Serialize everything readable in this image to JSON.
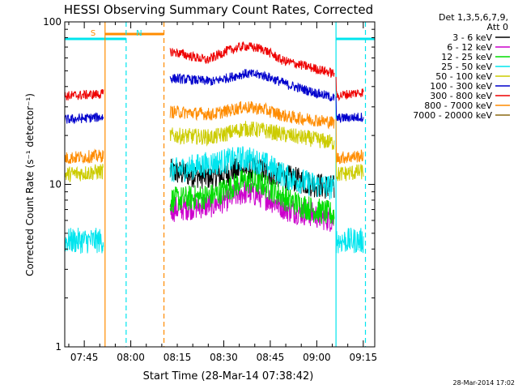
{
  "chart_data": {
    "type": "line",
    "title": "HESSI Observing Summary Count Rates, Corrected",
    "ylabel": "Corrected Count Rate (s⁻¹ detector⁻¹)",
    "xlabel": "Start Time (28-Mar-14 07:38:42)",
    "timestamp": "28-Mar-2014 17:02",
    "y_scale": "log",
    "ylim": [
      1,
      100
    ],
    "xlim_minutes": [
      0,
      100
    ],
    "x_ticks": [
      {
        "m": 6.3,
        "label": "07:45"
      },
      {
        "m": 21.3,
        "label": "08:00"
      },
      {
        "m": 36.3,
        "label": "08:15"
      },
      {
        "m": 51.3,
        "label": "08:30"
      },
      {
        "m": 66.3,
        "label": "08:45"
      },
      {
        "m": 81.3,
        "label": "09:00"
      },
      {
        "m": 96.3,
        "label": "09:15"
      }
    ],
    "y_ticks": [
      {
        "v": 1,
        "label": "1"
      },
      {
        "v": 10,
        "label": "10"
      },
      {
        "v": 100,
        "label": "100"
      }
    ],
    "legend_header": [
      "Det 1,3,5,6,7,9,",
      "Att 0"
    ],
    "legend_position": "right",
    "annotations": [
      {
        "label": "S",
        "m": 12.5
      },
      {
        "label": "N",
        "m": 23.0
      }
    ],
    "saa_bar": {
      "start": 13.0,
      "end": 32.0
    },
    "night_bars": [
      [
        0,
        19.8
      ],
      [
        87.5,
        100
      ]
    ],
    "vlines": [
      {
        "m": 13.0,
        "color": "#ff8c00",
        "style": "solid"
      },
      {
        "m": 19.8,
        "color": "#00e5ee",
        "style": "dashed"
      },
      {
        "m": 32.0,
        "color": "#ff8c00",
        "style": "dashed"
      },
      {
        "m": 87.5,
        "color": "#00e5ee",
        "style": "solid"
      },
      {
        "m": 97.0,
        "color": "#00e5ee",
        "style": "dashed"
      }
    ],
    "segments": [
      [
        0,
        12.5
      ],
      [
        34.0,
        87.0
      ],
      [
        87.5,
        96.5
      ]
    ],
    "series": [
      {
        "name": "3 - 6 keV",
        "color": "#000000",
        "key": [
          [
            34,
            12.0
          ],
          [
            48,
            11.0
          ],
          [
            58,
            12.5
          ],
          [
            64,
            12.0
          ],
          [
            72,
            11.0
          ],
          [
            80,
            10.0
          ],
          [
            87,
            9.5
          ]
        ],
        "noise": 0.08
      },
      {
        "name": "6 - 12 keV",
        "color": "#cc00cc",
        "key": [
          [
            34,
            7.0
          ],
          [
            48,
            7.5
          ],
          [
            58,
            9.0
          ],
          [
            64,
            8.5
          ],
          [
            72,
            7.0
          ],
          [
            80,
            6.5
          ],
          [
            87,
            6.0
          ]
        ],
        "noise": 0.08
      },
      {
        "name": "12 - 25 keV",
        "color": "#00dd00",
        "key": [
          [
            34,
            8.0
          ],
          [
            48,
            8.5
          ],
          [
            58,
            10.5
          ],
          [
            64,
            10.0
          ],
          [
            72,
            8.0
          ],
          [
            80,
            7.0
          ],
          [
            87,
            6.5
          ]
        ],
        "noise": 0.08
      },
      {
        "name": "25 - 50 keV",
        "color": "#00e5ee",
        "key": [
          [
            0,
            4.5
          ],
          [
            12.5,
            4.5
          ],
          [
            34,
            12.0
          ],
          [
            48,
            13.5
          ],
          [
            58,
            14.5
          ],
          [
            64,
            13.5
          ],
          [
            72,
            11.0
          ],
          [
            80,
            10.0
          ],
          [
            87,
            9.5
          ],
          [
            87.5,
            4.5
          ],
          [
            96.5,
            4.5
          ]
        ],
        "noise": 0.08
      },
      {
        "name": "50 - 100 keV",
        "color": "#cccc00",
        "key": [
          [
            0,
            11.5
          ],
          [
            12.5,
            12.0
          ],
          [
            34,
            20.0
          ],
          [
            48,
            19.5
          ],
          [
            58,
            22.0
          ],
          [
            64,
            21.5
          ],
          [
            72,
            20.0
          ],
          [
            80,
            19.0
          ],
          [
            87,
            18.0
          ],
          [
            87.5,
            11.5
          ],
          [
            96.5,
            12.0
          ]
        ],
        "noise": 0.05
      },
      {
        "name": "100 - 300 keV",
        "color": "#0000cc",
        "key": [
          [
            0,
            25.0
          ],
          [
            12.5,
            26.0
          ],
          [
            34,
            45.0
          ],
          [
            48,
            43.0
          ],
          [
            58,
            48.0
          ],
          [
            64,
            47.0
          ],
          [
            72,
            41.0
          ],
          [
            80,
            37.0
          ],
          [
            87,
            34.0
          ],
          [
            87.5,
            25.5
          ],
          [
            96.5,
            26.0
          ]
        ],
        "noise": 0.03
      },
      {
        "name": "300 - 800 keV",
        "color": "#ee0000",
        "key": [
          [
            0,
            35.0
          ],
          [
            12.5,
            36.0
          ],
          [
            34,
            66.0
          ],
          [
            46,
            58.0
          ],
          [
            52,
            66.0
          ],
          [
            58,
            71.0
          ],
          [
            64,
            68.0
          ],
          [
            70,
            58.0
          ],
          [
            80,
            52.0
          ],
          [
            87,
            48.0
          ],
          [
            87.5,
            35.0
          ],
          [
            96.5,
            37.0
          ]
        ],
        "noise": 0.03
      },
      {
        "name": "800 - 7000 keV",
        "color": "#ff8c00",
        "key": [
          [
            0,
            14.5
          ],
          [
            12.5,
            15.0
          ],
          [
            34,
            28.0
          ],
          [
            48,
            27.0
          ],
          [
            58,
            30.0
          ],
          [
            64,
            29.0
          ],
          [
            72,
            26.0
          ],
          [
            80,
            25.0
          ],
          [
            87,
            24.0
          ],
          [
            87.5,
            14.5
          ],
          [
            96.5,
            15.0
          ]
        ],
        "noise": 0.04
      },
      {
        "name": "7000 - 20000 keV",
        "color": "#8b6914",
        "key": [],
        "noise": 0
      }
    ]
  }
}
